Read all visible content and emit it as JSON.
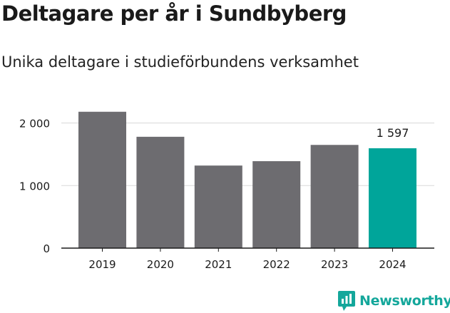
{
  "header": {
    "title": "Deltagare per år i Sundbyberg",
    "subtitle": "Unika deltagare i studieförbundens verksamhet"
  },
  "brand": {
    "name": "Newsworthy",
    "icon": "newsworthy-logo-icon",
    "color": "#14a79b"
  },
  "colors": {
    "bar": "#6d6c70",
    "highlight": "#00a59a",
    "grid": "#d9d9d9",
    "axis": "#1a1a1a"
  },
  "chart_data": {
    "type": "bar",
    "categories": [
      "2019",
      "2020",
      "2021",
      "2022",
      "2023",
      "2024"
    ],
    "values": [
      2180,
      1780,
      1320,
      1390,
      1650,
      1597
    ],
    "highlight_index": 5,
    "data_labels": [
      null,
      null,
      null,
      null,
      null,
      "1 597"
    ],
    "yticks": [
      0,
      1000,
      2000
    ],
    "ytick_labels": [
      "0",
      "1 000",
      "2 000"
    ],
    "ylim": [
      0,
      2200
    ],
    "title": "Deltagare per år i Sundbyberg",
    "subtitle": "Unika deltagare i studieförbundens verksamhet",
    "xlabel": "",
    "ylabel": "",
    "grid": true,
    "legend": "none"
  }
}
